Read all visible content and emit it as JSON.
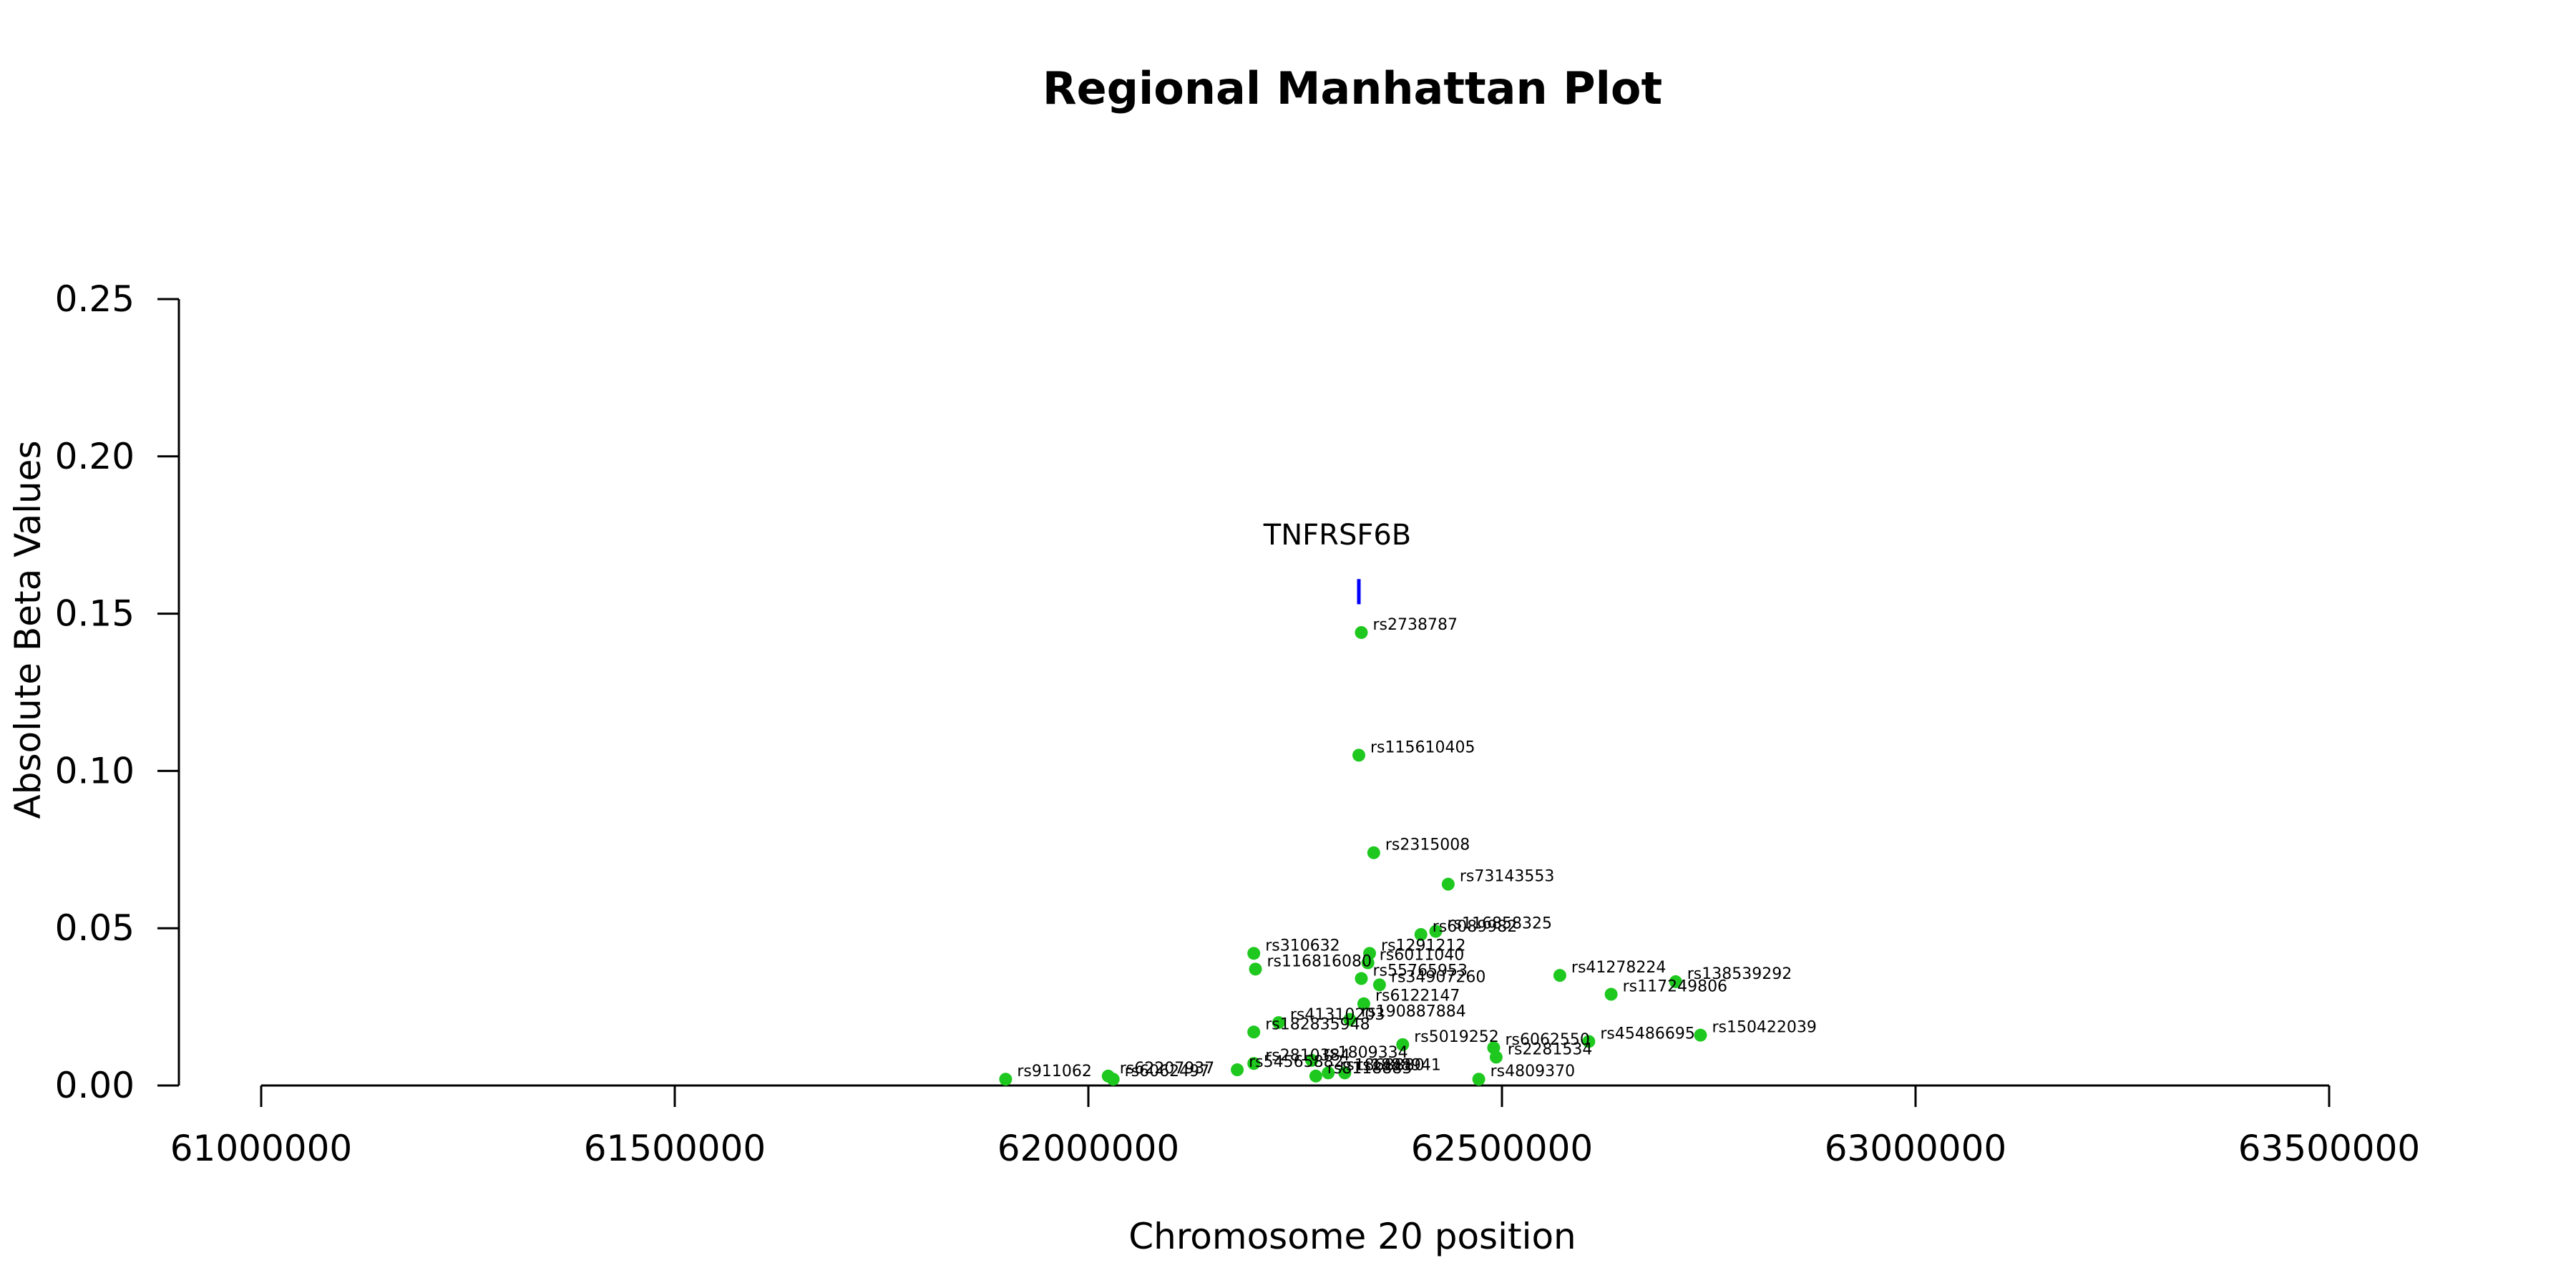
{
  "chart_data": {
    "type": "scatter",
    "title": "Regional Manhattan Plot",
    "xlabel": "Chromosome 20 position",
    "ylabel": "Absolute Beta Values",
    "xlim": [
      61000000,
      63500000
    ],
    "ylim": [
      0,
      0.25
    ],
    "x_ticks": [
      61000000,
      61500000,
      62000000,
      62500000,
      63000000,
      63500000
    ],
    "y_ticks": [
      0.0,
      0.05,
      0.1,
      0.15,
      0.2,
      0.25
    ],
    "x_tick_labels": [
      "61000000",
      "61500000",
      "62000000",
      "62500000",
      "63000000",
      "63500000"
    ],
    "y_tick_labels": [
      "0.00",
      "0.05",
      "0.10",
      "0.15",
      "0.20",
      "0.25"
    ],
    "point_color": "#1ec81e",
    "gene_color": "#0000ff",
    "grid": false,
    "gene": {
      "name": "TNFRSF6B",
      "x": 62327000,
      "y_range": [
        0.153,
        0.161
      ]
    },
    "points": [
      {
        "label": "rs2738787",
        "x": 62330000,
        "y": 0.144
      },
      {
        "label": "rs115610405",
        "x": 62327000,
        "y": 0.105
      },
      {
        "label": "rs2315008",
        "x": 62345000,
        "y": 0.074
      },
      {
        "label": "rs73143553",
        "x": 62435000,
        "y": 0.064
      },
      {
        "label": "rs116858325",
        "x": 62420000,
        "y": 0.049
      },
      {
        "label": "rs6089982",
        "x": 62402000,
        "y": 0.048
      },
      {
        "label": "rs310632",
        "x": 62200000,
        "y": 0.042
      },
      {
        "label": "rs1291212",
        "x": 62340000,
        "y": 0.042
      },
      {
        "label": "rs6011040",
        "x": 62338000,
        "y": 0.039
      },
      {
        "label": "rs116816080",
        "x": 62202000,
        "y": 0.037
      },
      {
        "label": "rs55765953",
        "x": 62330000,
        "y": 0.034
      },
      {
        "label": "rs41278224",
        "x": 62570000,
        "y": 0.035
      },
      {
        "label": "rs138539292",
        "x": 62710000,
        "y": 0.033
      },
      {
        "label": "rs34907260",
        "x": 62352000,
        "y": 0.032
      },
      {
        "label": "rs117249806",
        "x": 62632000,
        "y": 0.029
      },
      {
        "label": "rs6122147",
        "x": 62333000,
        "y": 0.026
      },
      {
        "label": "rs190887884",
        "x": 62316000,
        "y": 0.021
      },
      {
        "label": "rs41310203",
        "x": 62230000,
        "y": 0.02
      },
      {
        "label": "rs182835948",
        "x": 62200000,
        "y": 0.017
      },
      {
        "label": "rs150422039",
        "x": 62740000,
        "y": 0.016
      },
      {
        "label": "rs45486695",
        "x": 62605000,
        "y": 0.014
      },
      {
        "label": "rs6062550",
        "x": 62490000,
        "y": 0.012
      },
      {
        "label": "rs5019252",
        "x": 62380000,
        "y": 0.013
      },
      {
        "label": "rs2281534",
        "x": 62493000,
        "y": 0.009
      },
      {
        "label": "rs1809334",
        "x": 62270000,
        "y": 0.008
      },
      {
        "label": "rs2810384",
        "x": 62200000,
        "y": 0.007
      },
      {
        "label": "rs54565882",
        "x": 62180000,
        "y": 0.005
      },
      {
        "label": "rs4809370",
        "x": 62472000,
        "y": 0.002
      },
      {
        "label": "rs1888941",
        "x": 62310000,
        "y": 0.004
      },
      {
        "label": "rs1868880",
        "x": 62290000,
        "y": 0.004
      },
      {
        "label": "rs8118883",
        "x": 62275000,
        "y": 0.003
      },
      {
        "label": "rs911062",
        "x": 61900000,
        "y": 0.002
      },
      {
        "label": "rs62207937",
        "x": 62024000,
        "y": 0.003
      },
      {
        "label": "rs6062497",
        "x": 62030000,
        "y": 0.002
      }
    ]
  }
}
